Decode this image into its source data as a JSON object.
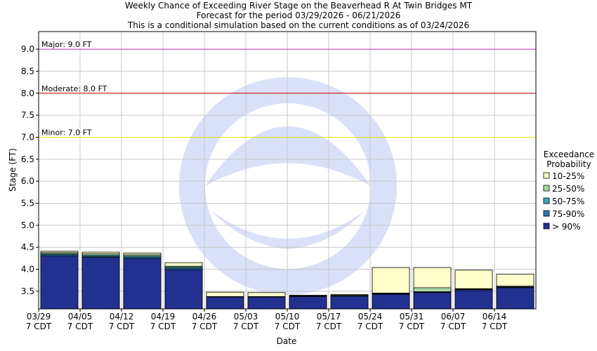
{
  "chart_data": {
    "type": "bar",
    "title_lines": [
      "Weekly Chance of Exceeding River Stage on the Beaverhead R At Twin Bridges MT",
      "Forecast for the period 03/29/2026 - 06/21/2026",
      "This is a conditional simulation based on the current conditions as of 03/24/2026"
    ],
    "xlabel": "Date",
    "ylabel": "Stage (FT)",
    "ylim": [
      3.1,
      9.4
    ],
    "yticks": [
      3.5,
      4.0,
      4.5,
      5.0,
      5.5,
      6.0,
      6.5,
      7.0,
      7.5,
      8.0,
      8.5,
      9.0
    ],
    "ytick_labels": [
      "3.5",
      "4.0",
      "4.5",
      "5.0",
      "5.5",
      "6.0",
      "6.5",
      "7.0",
      "7.5",
      "8.0",
      "8.5",
      "9.0"
    ],
    "categories": [
      "03/29",
      "04/05",
      "04/12",
      "04/19",
      "04/26",
      "05/03",
      "05/10",
      "05/17",
      "05/24",
      "05/31",
      "06/07",
      "06/14"
    ],
    "category_sublabel": "7 CDT",
    "thresholds": [
      {
        "label": "Major: 9.0 FT",
        "value": 9.0,
        "color": "#cc33cc"
      },
      {
        "label": "Moderate: 8.0 FT",
        "value": 8.0,
        "color": "#cc0000"
      },
      {
        "label": "Minor: 7.0 FT",
        "value": 7.0,
        "color": "#e6e600"
      }
    ],
    "legend_title": [
      "Exceedance",
      "Probability"
    ],
    "legend_position": "right",
    "grid": true,
    "series": [
      {
        "name": "> 90%",
        "color": "#22318f",
        "values": [
          4.3,
          4.27,
          4.24,
          3.99,
          3.37,
          3.37,
          3.38,
          3.39,
          3.43,
          3.47,
          3.53,
          3.58
        ]
      },
      {
        "name": "75-90%",
        "color": "#2e76b6",
        "values": [
          4.33,
          4.29,
          4.27,
          4.02,
          3.37,
          3.37,
          3.39,
          3.4,
          3.44,
          3.48,
          3.54,
          3.59
        ]
      },
      {
        "name": "50-75%",
        "color": "#3ea7b5",
        "values": [
          4.35,
          4.32,
          4.3,
          4.05,
          3.38,
          3.38,
          3.4,
          3.4,
          3.45,
          3.49,
          3.55,
          3.6
        ]
      },
      {
        "name": "25-50%",
        "color": "#a8d8a8",
        "values": [
          4.38,
          4.35,
          4.33,
          4.07,
          3.38,
          3.38,
          3.4,
          3.41,
          3.46,
          3.58,
          3.56,
          3.62
        ]
      },
      {
        "name": "10-25%",
        "color": "#ffffcc",
        "values": [
          4.41,
          4.39,
          4.37,
          4.15,
          3.48,
          3.47,
          3.41,
          3.43,
          4.04,
          4.04,
          3.98,
          3.89
        ]
      }
    ],
    "legend_order": [
      "10-25%",
      "25-50%",
      "50-75%",
      "75-90%",
      "> 90%"
    ]
  }
}
